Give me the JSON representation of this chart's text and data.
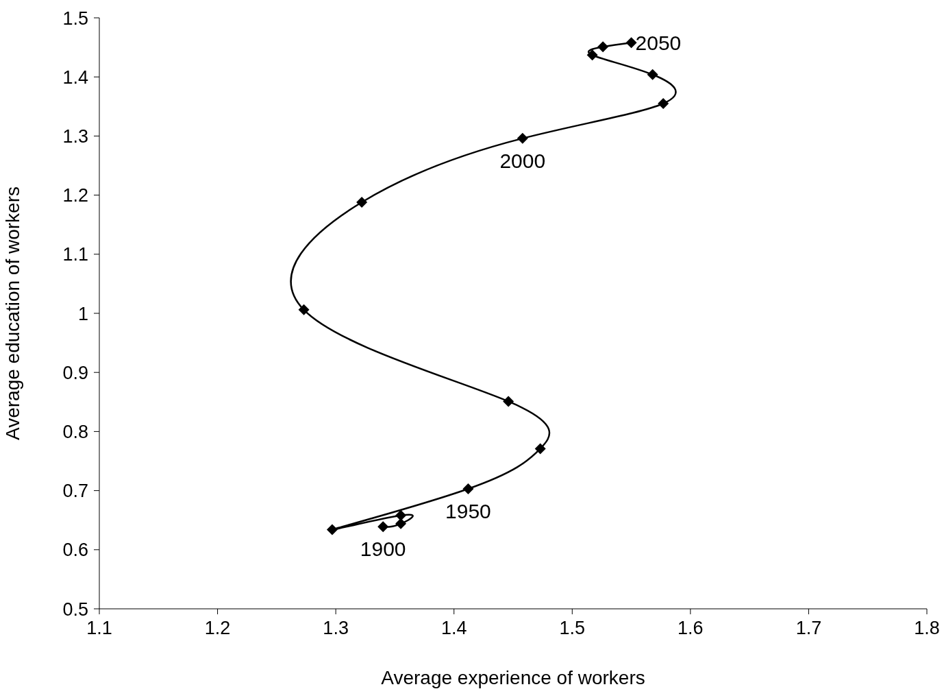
{
  "chart_data": {
    "type": "line",
    "xlabel": "Average experience of workers",
    "ylabel": "Average education of workers",
    "x": [
      1.34,
      1.355,
      1.355,
      1.297,
      1.412,
      1.473,
      1.446,
      1.273,
      1.322,
      1.458,
      1.577,
      1.568,
      1.517,
      1.526,
      1.55
    ],
    "series": [
      {
        "color": "#000000",
        "values": [
          0.639,
          0.644,
          0.658,
          0.634,
          0.703,
          0.771,
          0.851,
          1.006,
          1.188,
          1.296,
          1.355,
          1.404,
          1.437,
          1.451,
          1.458
        ]
      }
    ],
    "xlim": [
      1.1,
      1.8
    ],
    "xticks": [
      1.1,
      1.2,
      1.3,
      1.4,
      1.5,
      1.6,
      1.7,
      1.8
    ],
    "ylim": [
      0.5,
      1.5
    ],
    "yticks": [
      0.5,
      0.6,
      0.7,
      0.8,
      0.9,
      1,
      1.1,
      1.2,
      1.3,
      1.4,
      1.5
    ],
    "marker": "diamond",
    "line_style": "solid",
    "annotations": [
      {
        "text": "1900",
        "x": 1.34,
        "y": 0.639
      },
      {
        "text": "1950",
        "x": 1.412,
        "y": 0.703
      },
      {
        "text": "2000",
        "x": 1.458,
        "y": 1.296
      },
      {
        "text": "2050",
        "x": 1.55,
        "y": 1.458
      }
    ]
  }
}
